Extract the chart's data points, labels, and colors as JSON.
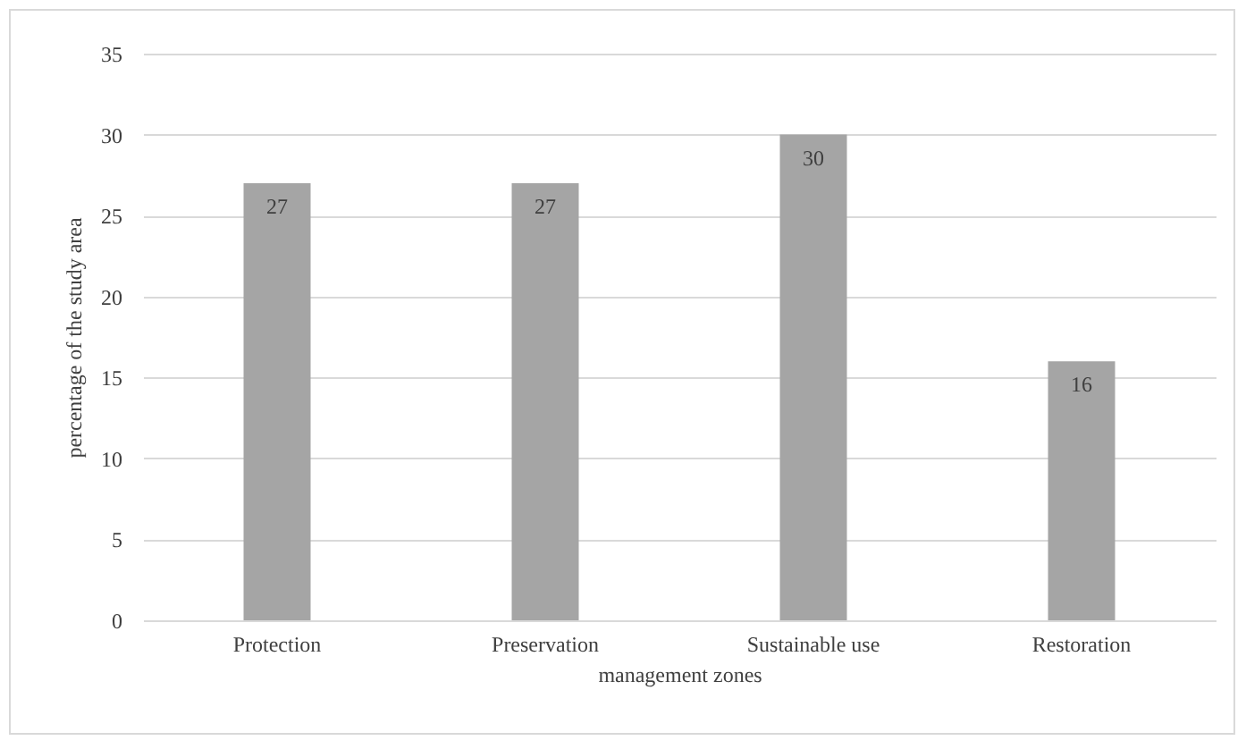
{
  "chart_data": {
    "type": "bar",
    "xlabel": "management zones",
    "ylabel": "percentage of the study area",
    "categories": [
      "Protection",
      "Preservation",
      "Sustainable use",
      "Restoration"
    ],
    "values": [
      27,
      27,
      30,
      16
    ],
    "color": "#a5a5a5",
    "ylim": [
      0,
      35
    ],
    "yticks": [
      0,
      5,
      10,
      15,
      20,
      25,
      30,
      35
    ],
    "grid": "y",
    "data_labels": true
  }
}
